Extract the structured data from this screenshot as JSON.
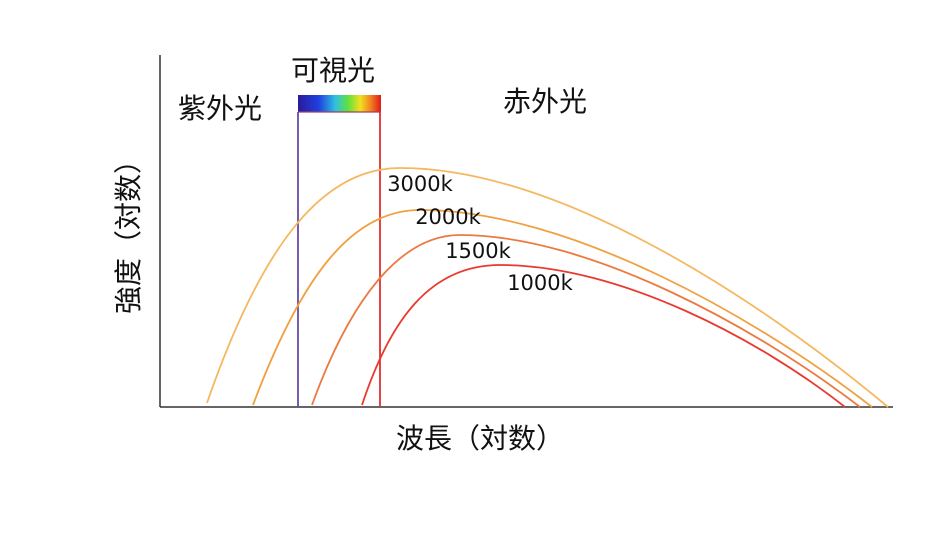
{
  "regions": {
    "ultraviolet": "紫外光",
    "visible": "可視光",
    "infrared": "赤外光"
  },
  "curves": [
    {
      "label": "3000k"
    },
    {
      "label": "2000k"
    },
    {
      "label": "1500k"
    },
    {
      "label": "1000k"
    }
  ],
  "axes": {
    "x_label": "波長（対数）",
    "y_label": "強度（対数）"
  }
}
